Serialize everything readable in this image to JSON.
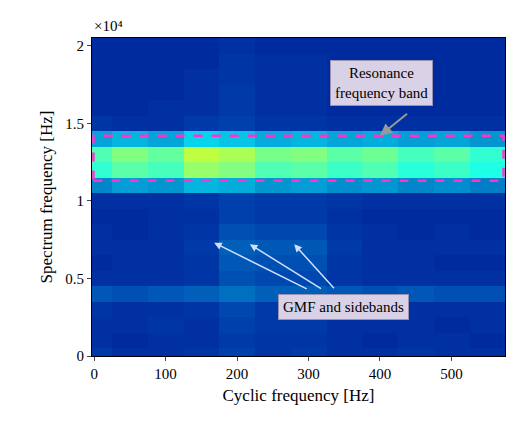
{
  "chart_data": {
    "type": "heatmap",
    "x_title": "Cyclic frequency [Hz]",
    "y_title": "Spectrum frequency [Hz]",
    "y_multiplier": "×10⁴",
    "color": "Jet",
    "x": [
      0,
      50,
      100,
      150,
      200,
      250,
      300,
      350,
      400,
      450,
      500,
      550
    ],
    "y": [
      0,
      0.1,
      0.2,
      0.3,
      0.4,
      0.5,
      0.6,
      0.7,
      0.8,
      0.9,
      1.0,
      1.1,
      1.2,
      1.3,
      1.4,
      1.5,
      1.6,
      1.7,
      1.8,
      1.9,
      2.0
    ],
    "z": [
      [
        0.12,
        0.1,
        0.1,
        0.11,
        0.13,
        0.11,
        0.12,
        0.1,
        0.1,
        0.11,
        0.1,
        0.1
      ],
      [
        0.1,
        0.09,
        0.1,
        0.1,
        0.12,
        0.11,
        0.11,
        0.1,
        0.09,
        0.1,
        0.1,
        0.09
      ],
      [
        0.1,
        0.1,
        0.11,
        0.1,
        0.13,
        0.12,
        0.12,
        0.1,
        0.1,
        0.1,
        0.09,
        0.1
      ],
      [
        0.11,
        0.1,
        0.1,
        0.11,
        0.14,
        0.12,
        0.12,
        0.11,
        0.1,
        0.1,
        0.1,
        0.1
      ],
      [
        0.16,
        0.15,
        0.16,
        0.17,
        0.19,
        0.17,
        0.17,
        0.16,
        0.15,
        0.16,
        0.15,
        0.15
      ],
      [
        0.1,
        0.1,
        0.1,
        0.11,
        0.15,
        0.14,
        0.14,
        0.11,
        0.1,
        0.1,
        0.1,
        0.1
      ],
      [
        0.09,
        0.1,
        0.1,
        0.11,
        0.16,
        0.15,
        0.15,
        0.11,
        0.1,
        0.1,
        0.09,
        0.09
      ],
      [
        0.1,
        0.1,
        0.1,
        0.12,
        0.17,
        0.16,
        0.16,
        0.12,
        0.1,
        0.1,
        0.1,
        0.1
      ],
      [
        0.1,
        0.09,
        0.1,
        0.11,
        0.15,
        0.14,
        0.14,
        0.11,
        0.1,
        0.09,
        0.1,
        0.09
      ],
      [
        0.09,
        0.09,
        0.1,
        0.1,
        0.13,
        0.12,
        0.12,
        0.1,
        0.09,
        0.09,
        0.09,
        0.09
      ],
      [
        0.1,
        0.1,
        0.1,
        0.11,
        0.13,
        0.12,
        0.12,
        0.11,
        0.1,
        0.1,
        0.1,
        0.1
      ],
      [
        0.22,
        0.25,
        0.24,
        0.28,
        0.27,
        0.24,
        0.25,
        0.23,
        0.24,
        0.22,
        0.23,
        0.21
      ],
      [
        0.42,
        0.46,
        0.44,
        0.52,
        0.5,
        0.45,
        0.46,
        0.43,
        0.45,
        0.41,
        0.43,
        0.4
      ],
      [
        0.45,
        0.5,
        0.47,
        0.56,
        0.54,
        0.49,
        0.5,
        0.46,
        0.48,
        0.44,
        0.46,
        0.42
      ],
      [
        0.26,
        0.28,
        0.26,
        0.32,
        0.3,
        0.27,
        0.28,
        0.26,
        0.27,
        0.25,
        0.26,
        0.24
      ],
      [
        0.11,
        0.1,
        0.1,
        0.12,
        0.13,
        0.11,
        0.11,
        0.1,
        0.1,
        0.1,
        0.1,
        0.1
      ],
      [
        0.09,
        0.09,
        0.1,
        0.1,
        0.12,
        0.1,
        0.1,
        0.09,
        0.09,
        0.09,
        0.09,
        0.09
      ],
      [
        0.09,
        0.09,
        0.09,
        0.1,
        0.12,
        0.1,
        0.1,
        0.09,
        0.09,
        0.09,
        0.09,
        0.09
      ],
      [
        0.09,
        0.09,
        0.09,
        0.1,
        0.11,
        0.1,
        0.1,
        0.09,
        0.09,
        0.09,
        0.09,
        0.09
      ],
      [
        0.09,
        0.09,
        0.09,
        0.09,
        0.11,
        0.1,
        0.1,
        0.09,
        0.09,
        0.09,
        0.09,
        0.09
      ],
      [
        0.09,
        0.09,
        0.09,
        0.09,
        0.1,
        0.09,
        0.09,
        0.09,
        0.09,
        0.09,
        0.09,
        0.09
      ]
    ],
    "z_range": [
      0,
      1
    ],
    "xlim": [
      -3,
      575
    ],
    "xticks": [
      0,
      100,
      200,
      300,
      400,
      500
    ],
    "ylim": [
      0,
      2.05
    ],
    "yticks": [
      0,
      0.5,
      1,
      1.5,
      2
    ],
    "band": {
      "text": "Resonance frequency band",
      "ylim": [
        1.13,
        1.42
      ],
      "arrow_x": 400,
      "arrow_y": 1.42
    },
    "peaks": {
      "text": "GMF and sidebands",
      "arrow_x": [
        168,
        218,
        280
      ],
      "arrow_y": [
        0.73,
        0.72,
        0.72
      ]
    }
  }
}
